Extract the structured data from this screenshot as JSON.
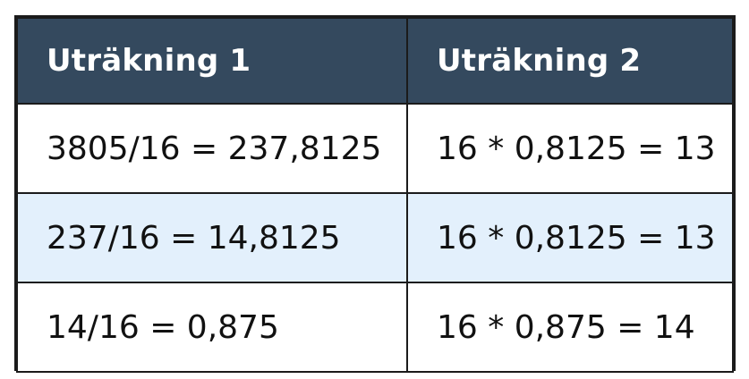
{
  "table": {
    "headers": [
      "Uträkning 1",
      "Uträkning 2"
    ],
    "rows": [
      [
        "3805/16 = 237,8125",
        "16 * 0,8125 = 13"
      ],
      [
        "237/16 = 14,8125",
        "16 * 0,8125 = 13"
      ],
      [
        "14/16 = 0,875",
        "16 * 0,875 = 14"
      ]
    ],
    "colors": {
      "header_bg": "#34495e",
      "header_text": "#ffffff",
      "alt_row_bg": "#e3f0fc",
      "border": "#1b1b1b"
    }
  }
}
